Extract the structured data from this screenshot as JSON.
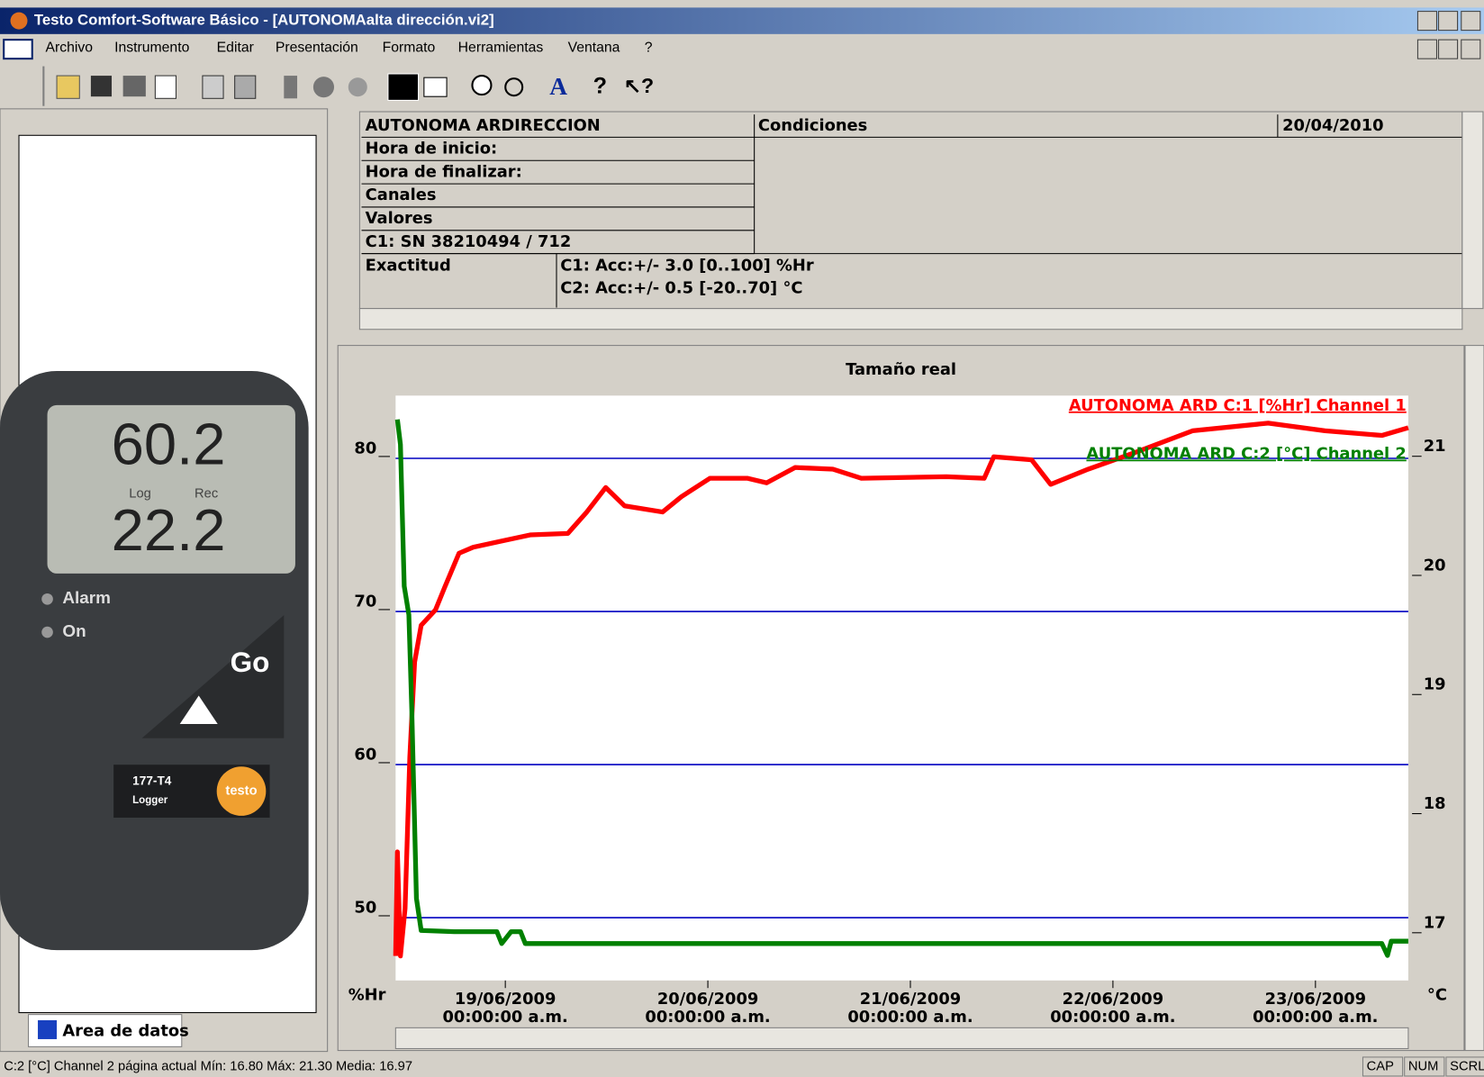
{
  "window": {
    "title": "Testo Comfort-Software Básico - [AUTONOMAalta dirección.vi2]"
  },
  "menu": [
    "Archivo",
    "Instrumento",
    "Editar",
    "Presentación",
    "Formato",
    "Herramientas",
    "Ventana",
    "?"
  ],
  "panel_tab": "Area de datos",
  "device": {
    "reading1": "60.2",
    "reading2": "22.2",
    "log": "Log",
    "rec": "Rec",
    "alarm": "Alarm",
    "on": "On",
    "go": "Go",
    "model": "177-T4",
    "kind": "Logger",
    "brand": "testo"
  },
  "info_table": {
    "name": "AUTONOMA ARDIRECCION",
    "conditions": "Condiciones",
    "date": "20/04/2010",
    "rows": [
      "Hora de inicio:",
      "Hora de finalizar:",
      "Canales",
      "Valores",
      "C1: SN 38210494 / 712"
    ],
    "accuracy_label": "Exactitud",
    "accuracy": [
      "C1: Acc:+/- 3.0 [0..100] %Hr",
      "C2: Acc:+/- 0.5 [-20..70] °C"
    ]
  },
  "chart_data": {
    "type": "line",
    "title": "Tamaño real",
    "y_label": "%Hr",
    "y2_label": "°C",
    "xlim": [
      "2009-06-18 11:00",
      "2009-06-23 11:00"
    ],
    "xticks": [
      {
        "value": "2009-06-19 00:00",
        "label": "19/06/2009",
        "time": "00:00:00 a.m."
      },
      {
        "value": "2009-06-20 00:00",
        "label": "20/06/2009",
        "time": "00:00:00 a.m."
      },
      {
        "value": "2009-06-21 00:00",
        "label": "21/06/2009",
        "time": "00:00:00 a.m."
      },
      {
        "value": "2009-06-22 00:00",
        "label": "22/06/2009",
        "time": "00:00:00 a.m."
      },
      {
        "value": "2009-06-23 00:00",
        "label": "23/06/2009",
        "time": "00:00:00 a.m."
      }
    ],
    "ylim": [
      45.9,
      84.1
    ],
    "yticks": [
      50,
      60,
      70,
      80
    ],
    "y2lim": [
      16.52,
      21.43
    ],
    "y2ticks": [
      17,
      18,
      19,
      20,
      21
    ],
    "grid": true,
    "series": [
      {
        "name": "AUTONOMA ARD C:1 [%Hr] Channel 1",
        "color": "#ff0000",
        "x": [
          "2009-06-18 11:00",
          "2009-06-18 11:13",
          "2009-06-18 11:34",
          "2009-06-18 12:07",
          "2009-06-18 12:41",
          "2009-06-18 13:15",
          "2009-06-18 14:02",
          "2009-06-18 15:43",
          "2009-06-18 16:50",
          "2009-06-18 18:31",
          "2009-06-18 20:12",
          "2009-06-18 23:34",
          "2009-06-19 02:56",
          "2009-06-19 07:25",
          "2009-06-19 09:39",
          "2009-06-19 11:54",
          "2009-06-19 14:08",
          "2009-06-19 18:38",
          "2009-06-19 20:52",
          "2009-06-20 00:14",
          "2009-06-20 04:43",
          "2009-06-20 06:58",
          "2009-06-20 10:20",
          "2009-06-20 14:49",
          "2009-06-20 18:11",
          "2009-06-21 04:16",
          "2009-06-21 08:45",
          "2009-06-21 09:53",
          "2009-06-21 14:22",
          "2009-06-21 16:37",
          "2009-06-21 21:05",
          "2009-06-22 02:42",
          "2009-06-22 09:26",
          "2009-06-22 18:24",
          "2009-06-23 01:08",
          "2009-06-23 07:52",
          "2009-06-23 11:00"
        ],
        "values": [
          47.5,
          54.3,
          47.5,
          50.6,
          60.5,
          66.7,
          69.1,
          70.1,
          71.6,
          73.8,
          74.2,
          74.6,
          75.0,
          75.1,
          76.5,
          78.1,
          76.9,
          76.5,
          77.5,
          78.7,
          78.7,
          78.4,
          79.4,
          79.3,
          78.7,
          78.8,
          78.7,
          80.1,
          79.9,
          78.3,
          79.3,
          80.4,
          81.8,
          82.3,
          81.8,
          81.5,
          82.0
        ]
      },
      {
        "name": "AUTONOMA ARD C:2 [°C] Channel 2",
        "color": "#008000",
        "axis": "y2",
        "x": [
          "2009-06-18 11:13",
          "2009-06-18 11:34",
          "2009-06-18 12:01",
          "2009-06-18 12:34",
          "2009-06-18 12:55",
          "2009-06-18 13:28",
          "2009-06-18 14:02",
          "2009-06-18 17:57",
          "2009-06-18 23:00",
          "2009-06-18 23:34",
          "2009-06-19 00:41",
          "2009-06-19 01:48",
          "2009-06-19 02:22",
          "2009-06-20 17:04",
          "2009-06-23 07:52",
          "2009-06-23 08:32",
          "2009-06-23 08:59",
          "2009-06-23 11:00"
        ],
        "values": [
          21.23,
          21.02,
          19.83,
          19.59,
          18.79,
          17.21,
          16.94,
          16.93,
          16.93,
          16.83,
          16.93,
          16.93,
          16.83,
          16.83,
          16.83,
          16.73,
          16.85,
          16.85
        ]
      }
    ]
  },
  "status_bar": {
    "text": "C:2 [°C] Channel 2 página actual Mín: 16.80 Máx: 21.30 Media: 16.97",
    "indicators": [
      "CAP",
      "NUM",
      "SCRL"
    ]
  }
}
